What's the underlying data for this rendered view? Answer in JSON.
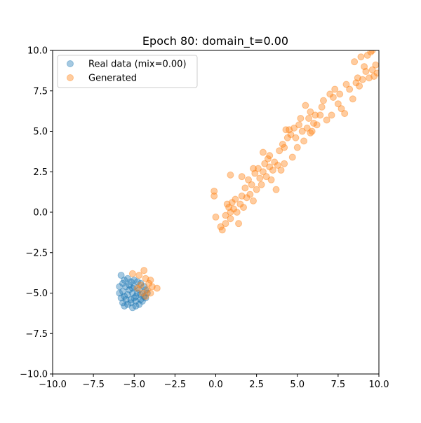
{
  "chart_data": {
    "type": "scatter",
    "title": "Epoch 80: domain_t=0.00",
    "xlabel": "",
    "ylabel": "",
    "xlim": [
      -10,
      10
    ],
    "ylim": [
      -10,
      10
    ],
    "xticks": [
      -10.0,
      -7.5,
      -5.0,
      -2.5,
      0.0,
      2.5,
      5.0,
      7.5,
      10.0
    ],
    "yticks": [
      -10.0,
      -7.5,
      -5.0,
      -2.5,
      0.0,
      2.5,
      5.0,
      7.5,
      10.0
    ],
    "xtick_labels": [
      "−10.0",
      "−7.5",
      "−5.0",
      "−2.5",
      "0.0",
      "2.5",
      "5.0",
      "7.5",
      "10.0"
    ],
    "ytick_labels": [
      "−10.0",
      "−7.5",
      "−5.0",
      "−2.5",
      "0.0",
      "2.5",
      "5.0",
      "7.5",
      "10.0"
    ],
    "grid": false,
    "legend_position": "upper-left",
    "series": [
      {
        "name": "Real data (mix=0.00)",
        "color": "#1f77b4",
        "points": [
          [
            -5.8,
            -3.9
          ],
          [
            -5.7,
            -4.4
          ],
          [
            -5.9,
            -4.6
          ],
          [
            -5.6,
            -4.2
          ],
          [
            -5.4,
            -4.1
          ],
          [
            -5.2,
            -4.3
          ],
          [
            -5.0,
            -4.2
          ],
          [
            -4.8,
            -4.3
          ],
          [
            -4.6,
            -4.4
          ],
          [
            -4.4,
            -4.6
          ],
          [
            -5.9,
            -5.0
          ],
          [
            -5.8,
            -5.3
          ],
          [
            -5.7,
            -5.6
          ],
          [
            -5.6,
            -5.8
          ],
          [
            -5.4,
            -5.7
          ],
          [
            -5.1,
            -5.9
          ],
          [
            -4.9,
            -5.8
          ],
          [
            -4.7,
            -5.7
          ],
          [
            -4.5,
            -5.5
          ],
          [
            -4.3,
            -5.3
          ],
          [
            -4.2,
            -5.0
          ],
          [
            -4.3,
            -4.8
          ],
          [
            -5.5,
            -4.6
          ],
          [
            -5.3,
            -4.8
          ],
          [
            -5.1,
            -5.0
          ],
          [
            -4.9,
            -5.2
          ],
          [
            -5.4,
            -5.1
          ],
          [
            -5.2,
            -5.4
          ],
          [
            -4.8,
            -5.0
          ],
          [
            -4.6,
            -5.1
          ],
          [
            -5.6,
            -5.2
          ],
          [
            -5.0,
            -4.6
          ],
          [
            -5.3,
            -4.5
          ],
          [
            -4.7,
            -4.8
          ],
          [
            -5.5,
            -5.4
          ],
          [
            -5.2,
            -5.6
          ],
          [
            -4.9,
            -5.5
          ],
          [
            -4.6,
            -5.4
          ],
          [
            -5.7,
            -4.9
          ],
          [
            -5.0,
            -5.3
          ],
          [
            -4.4,
            -5.2
          ],
          [
            -5.1,
            -4.7
          ]
        ]
      },
      {
        "name": "Generated",
        "color": "#ff7f0e",
        "points": [
          [
            -4.4,
            -3.6
          ],
          [
            -4.7,
            -3.9
          ],
          [
            -5.1,
            -3.8
          ],
          [
            -4.3,
            -4.1
          ],
          [
            -4.0,
            -4.2
          ],
          [
            -4.6,
            -4.5
          ],
          [
            -3.6,
            -4.7
          ],
          [
            -4.2,
            -4.8
          ],
          [
            -3.9,
            -4.6
          ],
          [
            -4.1,
            -4.4
          ],
          [
            -4.5,
            -5.0
          ],
          [
            -4.8,
            -4.7
          ],
          [
            -4.3,
            -5.2
          ],
          [
            -4.0,
            -5.0
          ],
          [
            -0.1,
            1.3
          ],
          [
            -0.1,
            1.0
          ],
          [
            0.0,
            -0.3
          ],
          [
            0.3,
            -0.9
          ],
          [
            0.4,
            -1.1
          ],
          [
            0.6,
            -0.7
          ],
          [
            0.6,
            -0.2
          ],
          [
            0.7,
            0.5
          ],
          [
            0.8,
            0.3
          ],
          [
            0.9,
            -0.4
          ],
          [
            0.9,
            0.0
          ],
          [
            1.0,
            0.6
          ],
          [
            1.1,
            0.2
          ],
          [
            1.2,
            0.8
          ],
          [
            1.3,
            0.0
          ],
          [
            1.4,
            -0.7
          ],
          [
            1.5,
            0.5
          ],
          [
            1.6,
            1.0
          ],
          [
            1.7,
            0.3
          ],
          [
            1.8,
            1.5
          ],
          [
            1.9,
            0.9
          ],
          [
            2.0,
            2.0
          ],
          [
            2.1,
            1.1
          ],
          [
            2.2,
            1.7
          ],
          [
            2.3,
            0.7
          ],
          [
            2.4,
            2.4
          ],
          [
            2.5,
            1.4
          ],
          [
            2.6,
            2.7
          ],
          [
            2.7,
            2.1
          ],
          [
            2.8,
            1.7
          ],
          [
            2.9,
            2.5
          ],
          [
            3.0,
            3.0
          ],
          [
            3.1,
            2.2
          ],
          [
            3.2,
            3.3
          ],
          [
            3.3,
            2.8
          ],
          [
            3.4,
            2.0
          ],
          [
            3.5,
            2.6
          ],
          [
            3.6,
            3.1
          ],
          [
            3.7,
            1.4
          ],
          [
            3.8,
            2.9
          ],
          [
            3.9,
            3.8
          ],
          [
            4.0,
            2.6
          ],
          [
            4.1,
            4.2
          ],
          [
            4.2,
            3.0
          ],
          [
            4.3,
            5.1
          ],
          [
            4.4,
            4.6
          ],
          [
            4.5,
            5.1
          ],
          [
            4.6,
            4.8
          ],
          [
            4.7,
            3.4
          ],
          [
            4.8,
            5.2
          ],
          [
            4.9,
            4.6
          ],
          [
            5.0,
            4.0
          ],
          [
            5.1,
            5.4
          ],
          [
            5.2,
            5.8
          ],
          [
            5.3,
            5.0
          ],
          [
            5.4,
            4.4
          ],
          [
            5.5,
            6.6
          ],
          [
            5.6,
            5.2
          ],
          [
            5.7,
            5.8
          ],
          [
            5.8,
            6.2
          ],
          [
            5.9,
            5.0
          ],
          [
            6.0,
            5.5
          ],
          [
            6.1,
            6.0
          ],
          [
            6.2,
            5.4
          ],
          [
            6.4,
            6.0
          ],
          [
            6.6,
            6.9
          ],
          [
            6.8,
            5.7
          ],
          [
            7.0,
            7.3
          ],
          [
            7.1,
            6.0
          ],
          [
            7.2,
            7.1
          ],
          [
            7.3,
            7.6
          ],
          [
            7.5,
            6.7
          ],
          [
            7.6,
            7.3
          ],
          [
            7.7,
            6.4
          ],
          [
            7.9,
            6.1
          ],
          [
            8.0,
            7.9
          ],
          [
            8.2,
            7.6
          ],
          [
            8.4,
            7.0
          ],
          [
            8.5,
            9.3
          ],
          [
            8.6,
            8.0
          ],
          [
            8.7,
            8.3
          ],
          [
            8.8,
            7.8
          ],
          [
            8.9,
            9.6
          ],
          [
            9.0,
            8.2
          ],
          [
            9.1,
            9.0
          ],
          [
            9.2,
            8.7
          ],
          [
            9.3,
            9.7
          ],
          [
            9.4,
            8.3
          ],
          [
            9.5,
            9.9
          ],
          [
            9.6,
            8.8
          ],
          [
            9.7,
            8.4
          ],
          [
            9.8,
            9.1
          ],
          [
            9.9,
            8.6
          ],
          [
            9.6,
            10.0
          ],
          [
            4.2,
            4.0
          ],
          [
            3.3,
            3.5
          ],
          [
            2.9,
            3.7
          ],
          [
            1.6,
            2.2
          ],
          [
            2.3,
            2.7
          ],
          [
            0.9,
            2.3
          ],
          [
            5.8,
            4.9
          ],
          [
            6.5,
            6.5
          ]
        ]
      }
    ]
  }
}
